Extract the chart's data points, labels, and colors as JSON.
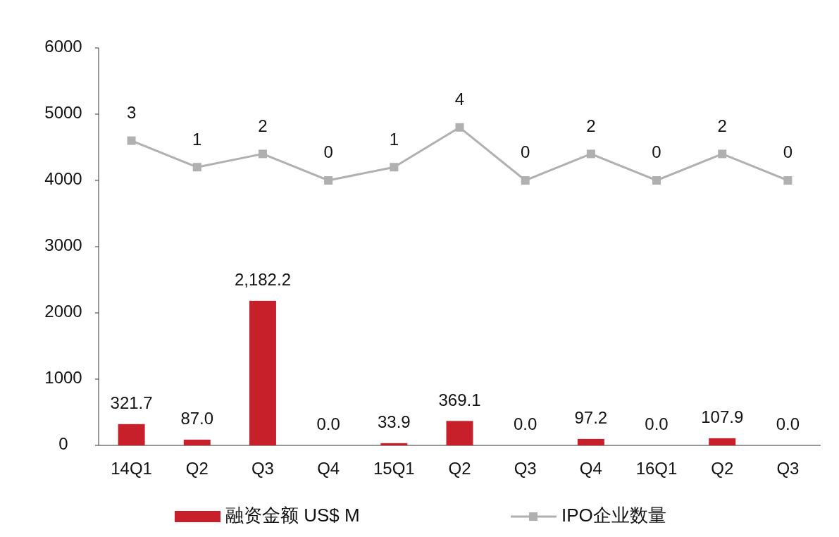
{
  "chart_data": {
    "type": "bar",
    "categories": [
      "14Q1",
      "Q2",
      "Q3",
      "Q4",
      "15Q1",
      "Q2",
      "Q3",
      "Q4",
      "16Q1",
      "Q2",
      "Q3"
    ],
    "ylim": [
      0,
      6000
    ],
    "yticks": [
      0,
      1000,
      2000,
      3000,
      4000,
      5000,
      6000
    ],
    "y2lim": [
      -20,
      10
    ],
    "grid": false,
    "legend": "bottom",
    "series": [
      {
        "name": "融资金额 US$ M",
        "color": "#c8202a",
        "values": [
          321.7,
          87.0,
          2182.2,
          0.0,
          33.9,
          369.1,
          0.0,
          97.2,
          0.0,
          107.9,
          0.0
        ],
        "value_labels": [
          "321.7",
          "87.0",
          "2,182.2",
          "0.0",
          "33.9",
          "369.1",
          "0.0",
          "97.2",
          "0.0",
          "107.9",
          "0.0"
        ]
      },
      {
        "name": "IPO企业数量",
        "type": "line",
        "axis": "y2",
        "color": "#b0b0b0",
        "marker": "square",
        "values": [
          3,
          1,
          2,
          0,
          1,
          4,
          0,
          2,
          0,
          2,
          0
        ],
        "value_labels": [
          "3",
          "1",
          "2",
          "0",
          "1",
          "4",
          "0",
          "2",
          "0",
          "2",
          "0"
        ]
      }
    ]
  }
}
